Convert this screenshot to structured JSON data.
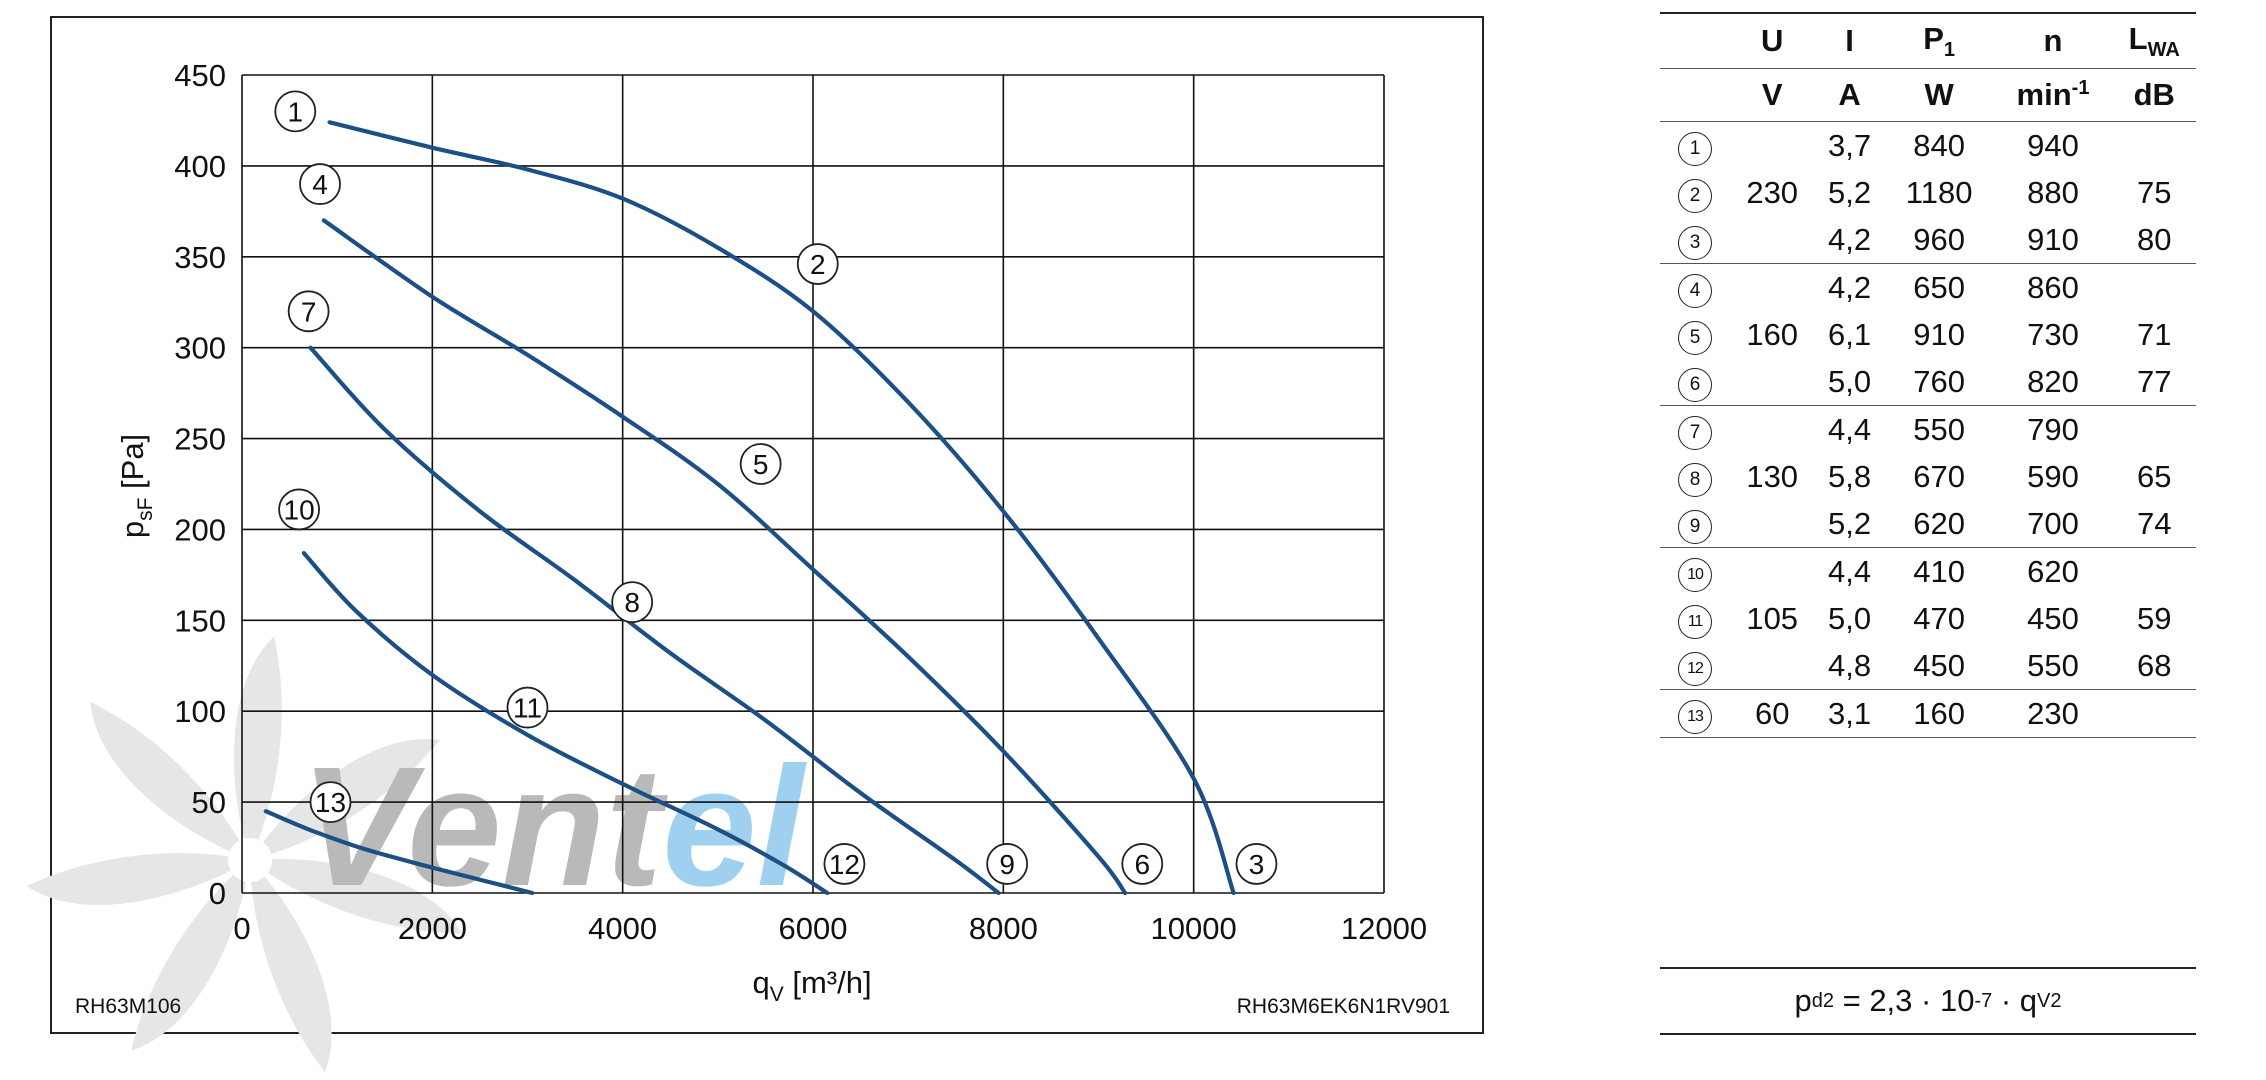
{
  "chart_data": {
    "type": "line",
    "title": "",
    "xlabel": "q",
    "xlabel_sub": "V",
    "xlabel_unit": "[m³/h]",
    "ylabel": "p",
    "ylabel_sub": "sF",
    "ylabel_unit": "[Pa]",
    "xlim": [
      0,
      12000
    ],
    "ylim": [
      0,
      450
    ],
    "x_ticks": [
      0,
      2000,
      4000,
      6000,
      8000,
      10000,
      12000
    ],
    "y_ticks": [
      0,
      50,
      100,
      150,
      200,
      250,
      300,
      350,
      400,
      450
    ],
    "x_tick_labels": [
      "0",
      "2000",
      "4000",
      "6000",
      "8000",
      "10000",
      "12000"
    ],
    "y_tick_labels": [
      "0",
      "50",
      "100",
      "150",
      "200",
      "250",
      "300",
      "350",
      "400",
      "450"
    ],
    "grid": true,
    "series": [
      {
        "name": "230 V",
        "points": [
          [
            920,
            424
          ],
          [
            2000,
            410
          ],
          [
            3000,
            398
          ],
          [
            4000,
            382
          ],
          [
            5000,
            355
          ],
          [
            6000,
            320
          ],
          [
            7000,
            270
          ],
          [
            8000,
            210
          ],
          [
            9000,
            140
          ],
          [
            10000,
            63
          ],
          [
            10420,
            0
          ]
        ]
      },
      {
        "name": "160 V",
        "points": [
          [
            860,
            370
          ],
          [
            2000,
            328
          ],
          [
            3000,
            296
          ],
          [
            4000,
            262
          ],
          [
            5000,
            225
          ],
          [
            6000,
            178
          ],
          [
            7000,
            130
          ],
          [
            8000,
            78
          ],
          [
            9000,
            20
          ],
          [
            9280,
            0
          ]
        ]
      },
      {
        "name": "130 V",
        "points": [
          [
            720,
            300
          ],
          [
            1500,
            255
          ],
          [
            2500,
            210
          ],
          [
            3500,
            172
          ],
          [
            4500,
            132
          ],
          [
            5500,
            95
          ],
          [
            6500,
            55
          ],
          [
            7500,
            18
          ],
          [
            7950,
            0
          ]
        ]
      },
      {
        "name": "105 V",
        "points": [
          [
            650,
            187
          ],
          [
            1200,
            155
          ],
          [
            2000,
            120
          ],
          [
            3000,
            87
          ],
          [
            4000,
            60
          ],
          [
            5000,
            35
          ],
          [
            5700,
            15
          ],
          [
            6150,
            0
          ]
        ]
      },
      {
        "name": "60 V",
        "points": [
          [
            250,
            45
          ],
          [
            700,
            35
          ],
          [
            1300,
            24
          ],
          [
            2000,
            14
          ],
          [
            2600,
            6
          ],
          [
            3050,
            0
          ]
        ]
      }
    ],
    "point_labels": [
      {
        "label": "1",
        "x": 560,
        "y": 430
      },
      {
        "label": "2",
        "x": 6050,
        "y": 346
      },
      {
        "label": "3",
        "x": 10660,
        "y": 16
      },
      {
        "label": "4",
        "x": 820,
        "y": 390
      },
      {
        "label": "5",
        "x": 5450,
        "y": 236
      },
      {
        "label": "6",
        "x": 9460,
        "y": 16
      },
      {
        "label": "7",
        "x": 700,
        "y": 320
      },
      {
        "label": "8",
        "x": 4100,
        "y": 160
      },
      {
        "label": "9",
        "x": 8040,
        "y": 16
      },
      {
        "label": "10",
        "x": 600,
        "y": 211
      },
      {
        "label": "11",
        "x": 3000,
        "y": 102
      },
      {
        "label": "12",
        "x": 6330,
        "y": 16
      },
      {
        "label": "13",
        "x": 930,
        "y": 50
      }
    ]
  },
  "chart_footer": {
    "left": "RH63M106",
    "right": "RH63M6EK6N1RV901"
  },
  "watermark": {
    "text_dark": "Vent",
    "text_light": "el"
  },
  "table": {
    "header_row1": [
      {
        "main": "U",
        "sub": ""
      },
      {
        "main": "I",
        "sub": ""
      },
      {
        "main": "P",
        "sub": "1"
      },
      {
        "main": "n",
        "sub": ""
      },
      {
        "main": "L",
        "sub": "WA"
      }
    ],
    "header_row2": [
      {
        "main": "V",
        "sup": ""
      },
      {
        "main": "A",
        "sup": ""
      },
      {
        "main": "W",
        "sup": ""
      },
      {
        "main": "min",
        "sup": "-1"
      },
      {
        "main": "dB",
        "sup": ""
      }
    ],
    "groups": [
      {
        "voltage": "230",
        "rows": [
          {
            "id": "1",
            "current": "3,7",
            "power": "840",
            "speed": "940",
            "noise": ""
          },
          {
            "id": "2",
            "current": "5,2",
            "power": "1180",
            "speed": "880",
            "noise": "75"
          },
          {
            "id": "3",
            "current": "4,2",
            "power": "960",
            "speed": "910",
            "noise": "80"
          }
        ]
      },
      {
        "voltage": "160",
        "rows": [
          {
            "id": "4",
            "current": "4,2",
            "power": "650",
            "speed": "860",
            "noise": ""
          },
          {
            "id": "5",
            "current": "6,1",
            "power": "910",
            "speed": "730",
            "noise": "71"
          },
          {
            "id": "6",
            "current": "5,0",
            "power": "760",
            "speed": "820",
            "noise": "77"
          }
        ]
      },
      {
        "voltage": "130",
        "rows": [
          {
            "id": "7",
            "current": "4,4",
            "power": "550",
            "speed": "790",
            "noise": ""
          },
          {
            "id": "8",
            "current": "5,8",
            "power": "670",
            "speed": "590",
            "noise": "65"
          },
          {
            "id": "9",
            "current": "5,2",
            "power": "620",
            "speed": "700",
            "noise": "74"
          }
        ]
      },
      {
        "voltage": "105",
        "rows": [
          {
            "id": "10",
            "current": "4,4",
            "power": "410",
            "speed": "620",
            "noise": ""
          },
          {
            "id": "11",
            "current": "5,0",
            "power": "470",
            "speed": "450",
            "noise": "59"
          },
          {
            "id": "12",
            "current": "4,8",
            "power": "450",
            "speed": "550",
            "noise": "68"
          }
        ]
      },
      {
        "voltage": "60",
        "rows": [
          {
            "id": "13",
            "current": "3,1",
            "power": "160",
            "speed": "230",
            "noise": ""
          }
        ]
      }
    ]
  },
  "formula": {
    "p": "p",
    "p_sub": "d2",
    "eq": " = 2,3 · 10",
    "exp": "-7",
    "mult": " · q",
    "q_sub": "V",
    "q_sup": "2"
  },
  "colors": {
    "curve": "#1c4f86",
    "grid": "#111111",
    "watermark_dark": "#b9b9b9",
    "watermark_light": "#9fd0ef",
    "watermark_fan": "#e6e6e6"
  }
}
